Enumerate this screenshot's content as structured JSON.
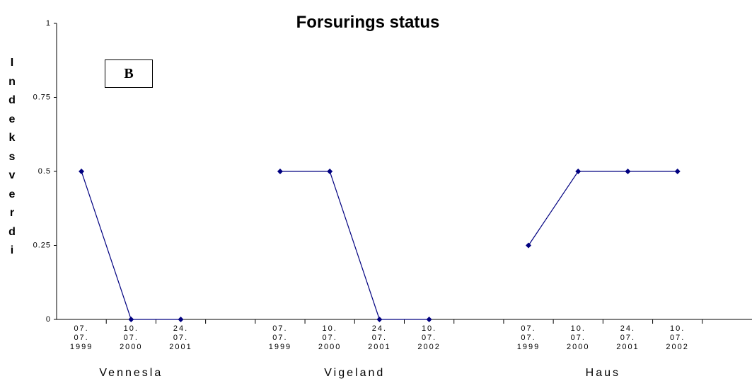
{
  "chart_data": {
    "type": "line",
    "title": "Forsurings status",
    "y_label": "Indeksverdi",
    "annotation": "B",
    "categories": [
      "07.\n07.\n1999",
      "10.\n07.\n2000",
      "24.\n07.\n2001",
      null,
      "07.\n07.\n1999",
      "10.\n07.\n2000",
      "24.\n07.\n2001",
      "10.\n07.\n2002",
      null,
      "07.\n07.\n1999",
      "10.\n07.\n2000",
      "24.\n07.\n2001",
      "10.\n07.\n2002",
      null
    ],
    "group_labels": [
      "Vennesla",
      "Vigeland",
      "Haus"
    ],
    "series": [
      {
        "color": "#000080",
        "values": [
          0.5,
          0,
          0,
          null,
          0.5,
          0.5,
          0,
          0,
          null,
          0.25,
          0.5,
          0.5,
          0.5,
          null
        ]
      }
    ],
    "ylim": [
      0,
      1
    ],
    "yticks": [
      0,
      0.25,
      0.5,
      0.75,
      1
    ],
    "grid": false
  }
}
